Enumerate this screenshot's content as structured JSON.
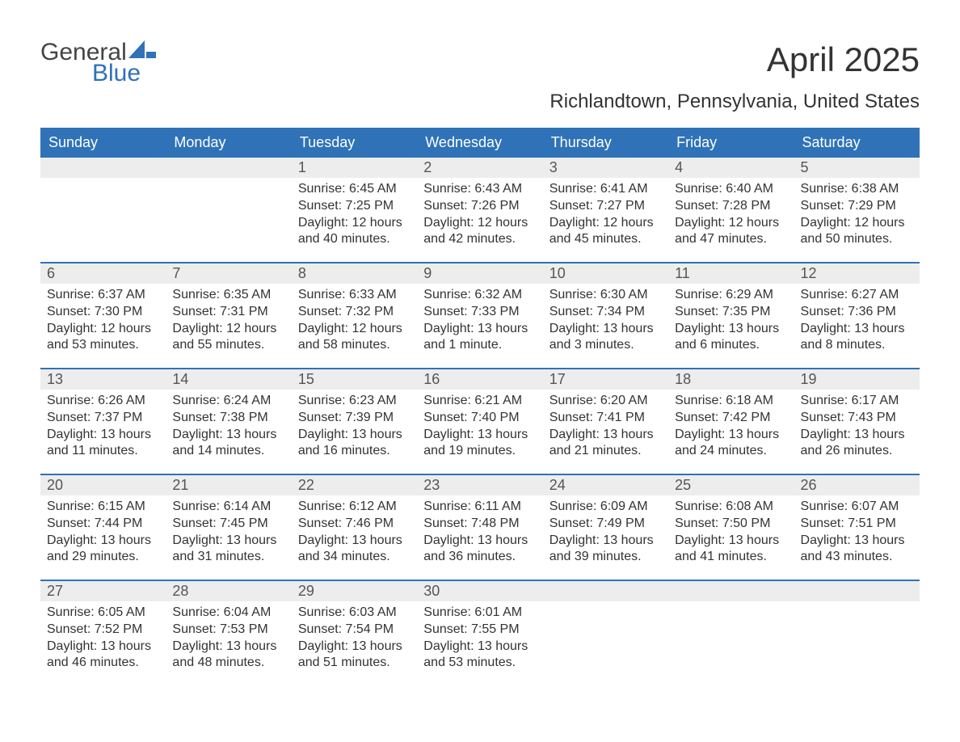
{
  "logo": {
    "general": "General",
    "blue": "Blue",
    "sail_color": "#2f72b8",
    "text_dark": "#444444"
  },
  "title": "April 2025",
  "location": "Richlandtown, Pennsylvania, United States",
  "colors": {
    "header_bg": "#2f72b8",
    "header_text": "#ffffff",
    "daynum_bg": "#ededed",
    "daynum_text": "#555555",
    "body_text": "#333333",
    "page_bg": "#ffffff"
  },
  "fonts": {
    "title_size_pt": 32,
    "location_size_pt": 18,
    "th_size_pt": 14,
    "daynum_size_pt": 14,
    "body_size_pt": 12
  },
  "day_headers": [
    "Sunday",
    "Monday",
    "Tuesday",
    "Wednesday",
    "Thursday",
    "Friday",
    "Saturday"
  ],
  "weeks": [
    [
      null,
      null,
      {
        "n": "1",
        "sunrise": "Sunrise: 6:45 AM",
        "sunset": "Sunset: 7:25 PM",
        "daylight": "Daylight: 12 hours and 40 minutes."
      },
      {
        "n": "2",
        "sunrise": "Sunrise: 6:43 AM",
        "sunset": "Sunset: 7:26 PM",
        "daylight": "Daylight: 12 hours and 42 minutes."
      },
      {
        "n": "3",
        "sunrise": "Sunrise: 6:41 AM",
        "sunset": "Sunset: 7:27 PM",
        "daylight": "Daylight: 12 hours and 45 minutes."
      },
      {
        "n": "4",
        "sunrise": "Sunrise: 6:40 AM",
        "sunset": "Sunset: 7:28 PM",
        "daylight": "Daylight: 12 hours and 47 minutes."
      },
      {
        "n": "5",
        "sunrise": "Sunrise: 6:38 AM",
        "sunset": "Sunset: 7:29 PM",
        "daylight": "Daylight: 12 hours and 50 minutes."
      }
    ],
    [
      {
        "n": "6",
        "sunrise": "Sunrise: 6:37 AM",
        "sunset": "Sunset: 7:30 PM",
        "daylight": "Daylight: 12 hours and 53 minutes."
      },
      {
        "n": "7",
        "sunrise": "Sunrise: 6:35 AM",
        "sunset": "Sunset: 7:31 PM",
        "daylight": "Daylight: 12 hours and 55 minutes."
      },
      {
        "n": "8",
        "sunrise": "Sunrise: 6:33 AM",
        "sunset": "Sunset: 7:32 PM",
        "daylight": "Daylight: 12 hours and 58 minutes."
      },
      {
        "n": "9",
        "sunrise": "Sunrise: 6:32 AM",
        "sunset": "Sunset: 7:33 PM",
        "daylight": "Daylight: 13 hours and 1 minute."
      },
      {
        "n": "10",
        "sunrise": "Sunrise: 6:30 AM",
        "sunset": "Sunset: 7:34 PM",
        "daylight": "Daylight: 13 hours and 3 minutes."
      },
      {
        "n": "11",
        "sunrise": "Sunrise: 6:29 AM",
        "sunset": "Sunset: 7:35 PM",
        "daylight": "Daylight: 13 hours and 6 minutes."
      },
      {
        "n": "12",
        "sunrise": "Sunrise: 6:27 AM",
        "sunset": "Sunset: 7:36 PM",
        "daylight": "Daylight: 13 hours and 8 minutes."
      }
    ],
    [
      {
        "n": "13",
        "sunrise": "Sunrise: 6:26 AM",
        "sunset": "Sunset: 7:37 PM",
        "daylight": "Daylight: 13 hours and 11 minutes."
      },
      {
        "n": "14",
        "sunrise": "Sunrise: 6:24 AM",
        "sunset": "Sunset: 7:38 PM",
        "daylight": "Daylight: 13 hours and 14 minutes."
      },
      {
        "n": "15",
        "sunrise": "Sunrise: 6:23 AM",
        "sunset": "Sunset: 7:39 PM",
        "daylight": "Daylight: 13 hours and 16 minutes."
      },
      {
        "n": "16",
        "sunrise": "Sunrise: 6:21 AM",
        "sunset": "Sunset: 7:40 PM",
        "daylight": "Daylight: 13 hours and 19 minutes."
      },
      {
        "n": "17",
        "sunrise": "Sunrise: 6:20 AM",
        "sunset": "Sunset: 7:41 PM",
        "daylight": "Daylight: 13 hours and 21 minutes."
      },
      {
        "n": "18",
        "sunrise": "Sunrise: 6:18 AM",
        "sunset": "Sunset: 7:42 PM",
        "daylight": "Daylight: 13 hours and 24 minutes."
      },
      {
        "n": "19",
        "sunrise": "Sunrise: 6:17 AM",
        "sunset": "Sunset: 7:43 PM",
        "daylight": "Daylight: 13 hours and 26 minutes."
      }
    ],
    [
      {
        "n": "20",
        "sunrise": "Sunrise: 6:15 AM",
        "sunset": "Sunset: 7:44 PM",
        "daylight": "Daylight: 13 hours and 29 minutes."
      },
      {
        "n": "21",
        "sunrise": "Sunrise: 6:14 AM",
        "sunset": "Sunset: 7:45 PM",
        "daylight": "Daylight: 13 hours and 31 minutes."
      },
      {
        "n": "22",
        "sunrise": "Sunrise: 6:12 AM",
        "sunset": "Sunset: 7:46 PM",
        "daylight": "Daylight: 13 hours and 34 minutes."
      },
      {
        "n": "23",
        "sunrise": "Sunrise: 6:11 AM",
        "sunset": "Sunset: 7:48 PM",
        "daylight": "Daylight: 13 hours and 36 minutes."
      },
      {
        "n": "24",
        "sunrise": "Sunrise: 6:09 AM",
        "sunset": "Sunset: 7:49 PM",
        "daylight": "Daylight: 13 hours and 39 minutes."
      },
      {
        "n": "25",
        "sunrise": "Sunrise: 6:08 AM",
        "sunset": "Sunset: 7:50 PM",
        "daylight": "Daylight: 13 hours and 41 minutes."
      },
      {
        "n": "26",
        "sunrise": "Sunrise: 6:07 AM",
        "sunset": "Sunset: 7:51 PM",
        "daylight": "Daylight: 13 hours and 43 minutes."
      }
    ],
    [
      {
        "n": "27",
        "sunrise": "Sunrise: 6:05 AM",
        "sunset": "Sunset: 7:52 PM",
        "daylight": "Daylight: 13 hours and 46 minutes."
      },
      {
        "n": "28",
        "sunrise": "Sunrise: 6:04 AM",
        "sunset": "Sunset: 7:53 PM",
        "daylight": "Daylight: 13 hours and 48 minutes."
      },
      {
        "n": "29",
        "sunrise": "Sunrise: 6:03 AM",
        "sunset": "Sunset: 7:54 PM",
        "daylight": "Daylight: 13 hours and 51 minutes."
      },
      {
        "n": "30",
        "sunrise": "Sunrise: 6:01 AM",
        "sunset": "Sunset: 7:55 PM",
        "daylight": "Daylight: 13 hours and 53 minutes."
      },
      null,
      null,
      null
    ]
  ]
}
